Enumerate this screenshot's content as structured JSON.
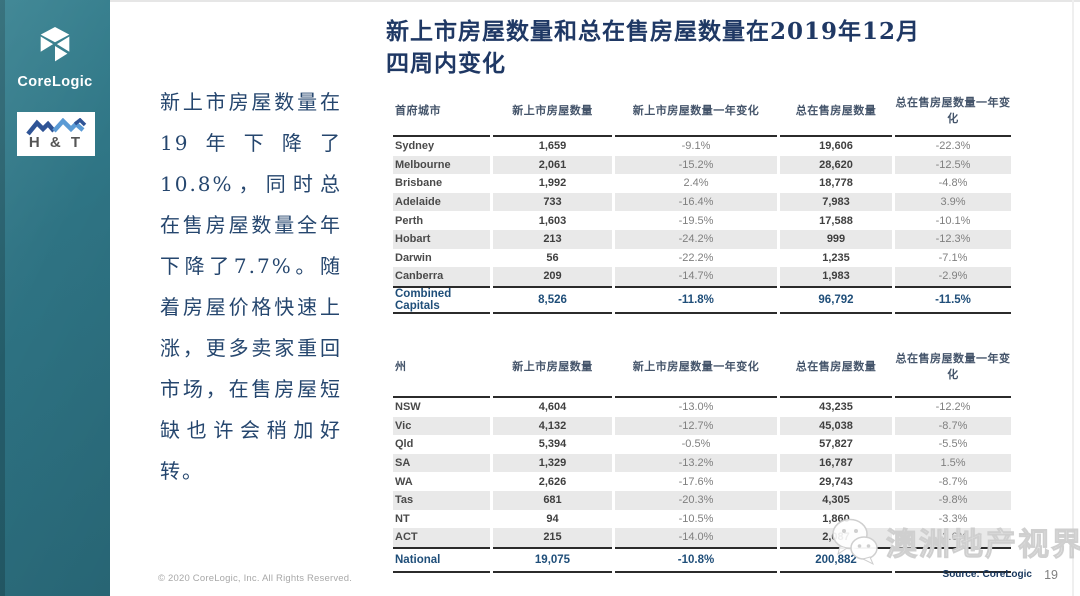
{
  "slide": {
    "title_line1": "新上市房屋数量和总在售房屋数量在2019年12月",
    "title_line2": "四周内变化",
    "commentary": "新上市房屋数量在19年下降了10.8%，同时总在售房屋数量全年下降了7.7%。随着房屋价格快速上涨，更多卖家重回市场，在售房屋短缺也许会稍加好转。",
    "copyright": "© 2020 CoreLogic, Inc. All Rights Reserved.",
    "source": "Source: CoreLogic",
    "page_number": "19"
  },
  "logos": {
    "corelogic_label": "CoreLogic",
    "ht_label": "H & T"
  },
  "watermark": {
    "text": "澳洲地产视界",
    "icon": "wechat-icon"
  },
  "tables": [
    {
      "name": "capitals",
      "columns": [
        "首府城市",
        "新上市房屋数量",
        "新上市房屋数量一年变化",
        "总在售房屋数量",
        "总在售房屋数量一年变化"
      ],
      "rows": [
        [
          "Sydney",
          "1,659",
          "-9.1%",
          "19,606",
          "-22.3%"
        ],
        [
          "Melbourne",
          "2,061",
          "-15.2%",
          "28,620",
          "-12.5%"
        ],
        [
          "Brisbane",
          "1,992",
          "2.4%",
          "18,778",
          "-4.8%"
        ],
        [
          "Adelaide",
          "733",
          "-16.4%",
          "7,983",
          "3.9%"
        ],
        [
          "Perth",
          "1,603",
          "-19.5%",
          "17,588",
          "-10.1%"
        ],
        [
          "Hobart",
          "213",
          "-24.2%",
          "999",
          "-12.3%"
        ],
        [
          "Darwin",
          "56",
          "-22.2%",
          "1,235",
          "-7.1%"
        ],
        [
          "Canberra",
          "209",
          "-14.7%",
          "1,983",
          "-2.9%"
        ]
      ],
      "total": [
        "Combined Capitals",
        "8,526",
        "-11.8%",
        "96,792",
        "-11.5%"
      ]
    },
    {
      "name": "states",
      "columns": [
        "州",
        "新上市房屋数量",
        "新上市房屋数量一年变化",
        "总在售房屋数量",
        "总在售房屋数量一年变化"
      ],
      "rows": [
        [
          "NSW",
          "4,604",
          "-13.0%",
          "43,235",
          "-12.2%"
        ],
        [
          "Vic",
          "4,132",
          "-12.7%",
          "45,038",
          "-8.7%"
        ],
        [
          "Qld",
          "5,394",
          "-0.5%",
          "57,827",
          "-5.5%"
        ],
        [
          "SA",
          "1,329",
          "-13.2%",
          "16,787",
          "1.5%"
        ],
        [
          "WA",
          "2,626",
          "-17.6%",
          "29,743",
          "-8.7%"
        ],
        [
          "Tas",
          "681",
          "-20.3%",
          "4,305",
          "-9.8%"
        ],
        [
          "NT",
          "94",
          "-10.5%",
          "1,860",
          "-3.3%"
        ],
        [
          "ACT",
          "215",
          "-14.0%",
          "2,087",
          "-2.6%"
        ]
      ],
      "total": [
        "National",
        "19,075",
        "-10.8%",
        "200,882",
        ""
      ]
    }
  ],
  "colors": {
    "sidebar_teal": "#2e7383",
    "title_navy": "#1f3864",
    "commentary_navy": "#25466e",
    "header_blue_gray": "#44546a",
    "total_navy": "#1f4e79",
    "row_alt_gray": "#e9e9e9",
    "rule_dark": "#2b2b2b",
    "percent_gray": "#7f7f7f",
    "ht_dark_blue": "#2f5496",
    "ht_light_blue": "#5b9bd5"
  }
}
